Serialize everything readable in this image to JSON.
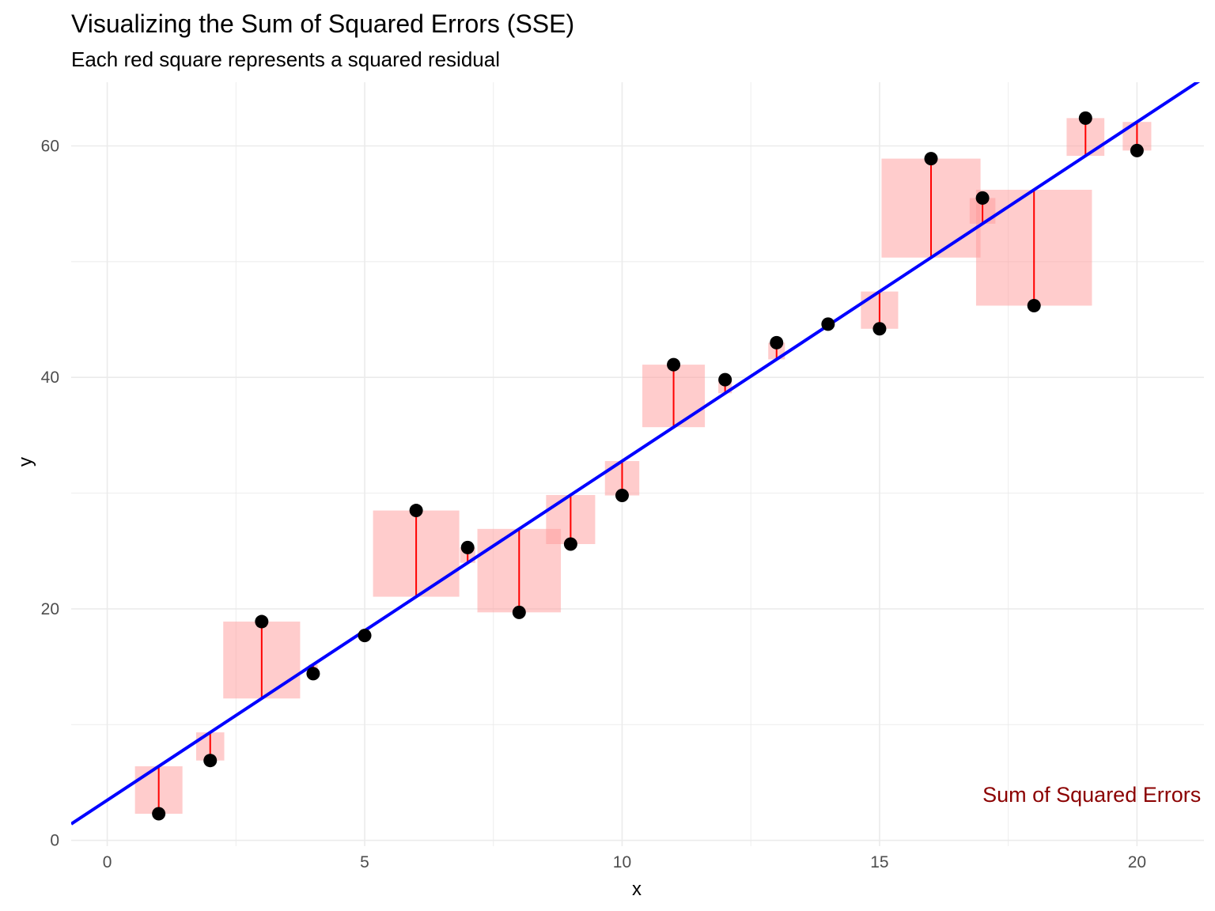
{
  "chart_data": {
    "type": "scatter",
    "title": "Visualizing the Sum of Squared Errors (SSE)",
    "subtitle": "Each red square represents a squared residual",
    "xlabel": "x",
    "ylabel": "y",
    "xlim": [
      -0.7,
      21.3
    ],
    "ylim": [
      -0.5,
      65.5
    ],
    "x_ticks": [
      0,
      5,
      10,
      15,
      20
    ],
    "y_ticks": [
      0,
      20,
      40,
      60
    ],
    "grid": true,
    "points": [
      {
        "x": 1,
        "y": 2.3
      },
      {
        "x": 2,
        "y": 6.9
      },
      {
        "x": 3,
        "y": 18.9
      },
      {
        "x": 4,
        "y": 14.4
      },
      {
        "x": 5,
        "y": 17.7
      },
      {
        "x": 6,
        "y": 28.5
      },
      {
        "x": 7,
        "y": 25.3
      },
      {
        "x": 8,
        "y": 19.7
      },
      {
        "x": 9,
        "y": 25.6
      },
      {
        "x": 10,
        "y": 29.8
      },
      {
        "x": 11,
        "y": 41.1
      },
      {
        "x": 12,
        "y": 39.8
      },
      {
        "x": 13,
        "y": 43.0
      },
      {
        "x": 14,
        "y": 44.6
      },
      {
        "x": 15,
        "y": 44.2
      },
      {
        "x": 16,
        "y": 58.9
      },
      {
        "x": 17,
        "y": 55.5
      },
      {
        "x": 18,
        "y": 46.2
      },
      {
        "x": 19,
        "y": 62.4
      },
      {
        "x": 20,
        "y": 59.6
      }
    ],
    "regression_line": {
      "intercept": 3.47,
      "slope": 2.93,
      "color": "#0000ff"
    },
    "residual_color": "#ff0000",
    "square_color": "#ff9999",
    "point_color": "#000000",
    "annotation": {
      "text": "Sum of Squared Errors",
      "x": 17.0,
      "y": 4.0,
      "color": "#8b0000"
    }
  }
}
